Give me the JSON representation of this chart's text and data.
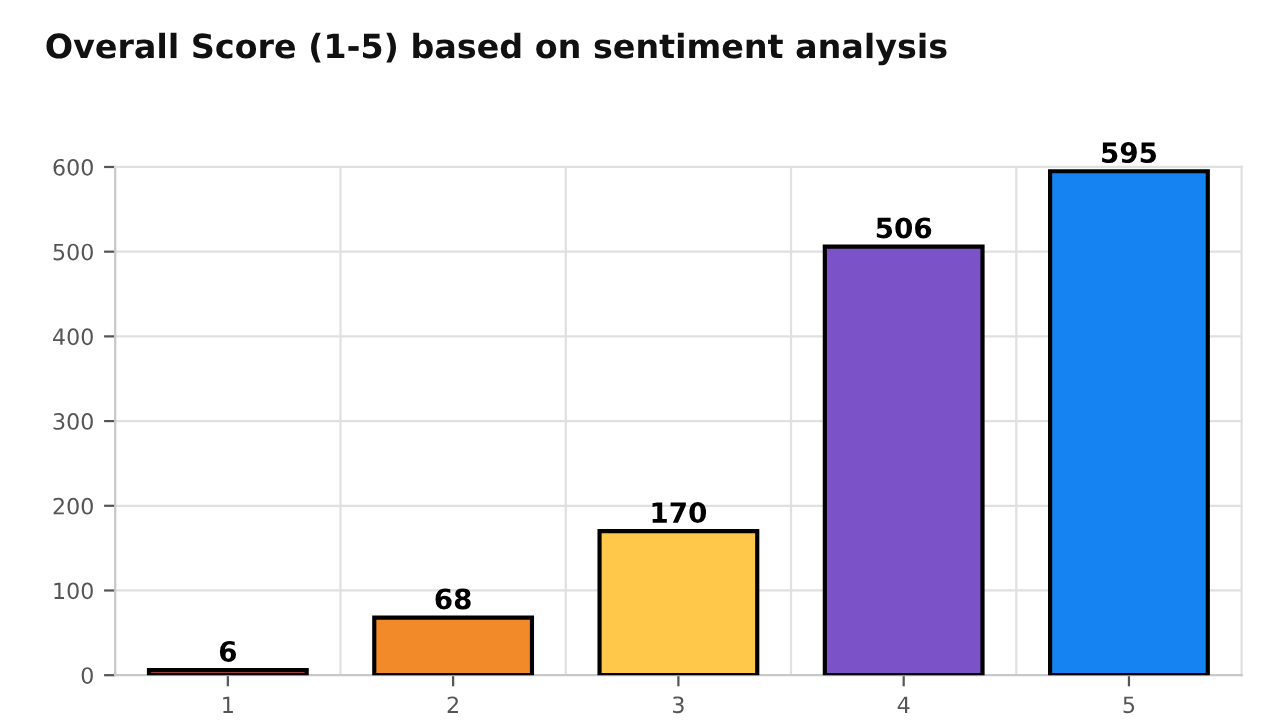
{
  "chart_data": {
    "type": "bar",
    "title": "Overall Score (1-5) based on sentiment analysis",
    "categories": [
      "1",
      "2",
      "3",
      "4",
      "5"
    ],
    "values": [
      6,
      68,
      170,
      506,
      595
    ],
    "colors": [
      "#d9534f",
      "#f28a2a",
      "#ffc84a",
      "#7b52c7",
      "#1683f2"
    ],
    "ylim": [
      0,
      600
    ],
    "yticks": [
      0,
      100,
      200,
      300,
      400,
      500,
      600
    ],
    "grid": true,
    "data_labels": true
  }
}
